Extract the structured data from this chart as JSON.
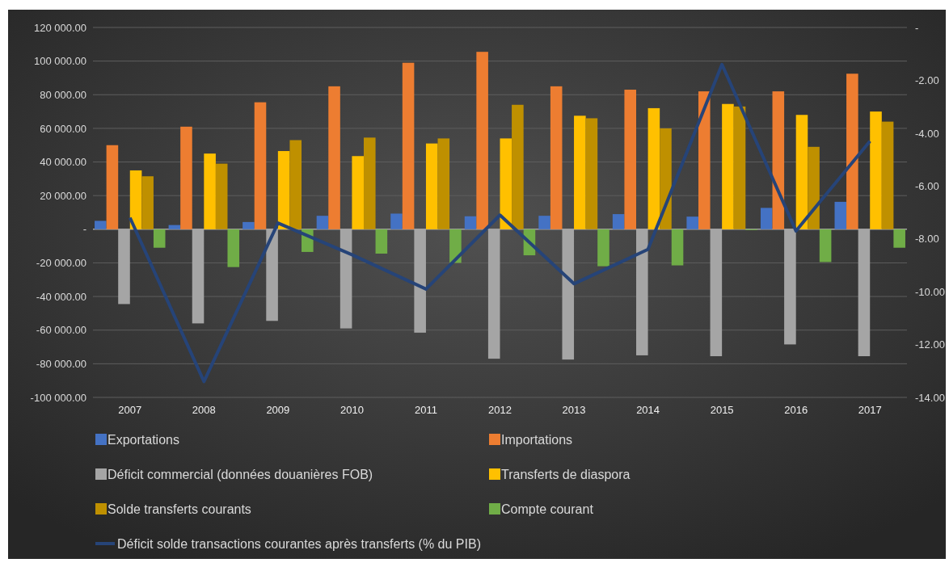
{
  "chart_data": {
    "type": "bar",
    "categories": [
      "2007",
      "2008",
      "2009",
      "2010",
      "2011",
      "2012",
      "2013",
      "2014",
      "2015",
      "2016",
      "2017"
    ],
    "series": [
      {
        "name": "Exportations",
        "color": "#4472c4",
        "values": [
          5000,
          2500,
          4300,
          8000,
          9300,
          7700,
          8000,
          9000,
          7500,
          12700,
          16300
        ]
      },
      {
        "name": "Importations",
        "color": "#ed7d31",
        "values": [
          50000,
          61000,
          75500,
          85000,
          99000,
          105500,
          85000,
          83000,
          82000,
          82000,
          92500
        ]
      },
      {
        "name": "Déficit commercial (données douanières FOB)",
        "color": "#a5a5a5",
        "values": [
          -44500,
          -56000,
          -54500,
          -59000,
          -61500,
          -77000,
          -77500,
          -75000,
          -75500,
          -68500,
          -75500
        ]
      },
      {
        "name": "Transferts de diaspora",
        "color": "#ffc000",
        "values": [
          35000,
          45000,
          46500,
          43500,
          51000,
          54000,
          67500,
          72000,
          74500,
          68000,
          70000
        ]
      },
      {
        "name": "Solde transferts courants",
        "color": "#bf9000",
        "values": [
          31500,
          39000,
          53000,
          54500,
          54000,
          74000,
          66000,
          60000,
          73000,
          49000,
          64000
        ]
      },
      {
        "name": "Compte courant",
        "color": "#70ad47",
        "values": [
          -11000,
          -22500,
          -13500,
          -14500,
          -20000,
          -15500,
          -22000,
          -21500,
          -500,
          -19500,
          -11000
        ]
      },
      {
        "name": "Déficit solde transactions courantes après transferts (% du PIB)",
        "type": "line",
        "axis": "y2",
        "color": "#264478",
        "values": [
          -7.2,
          -13.4,
          -7.4,
          -8.6,
          -9.9,
          -7.1,
          -9.7,
          -8.4,
          -1.4,
          -7.7,
          -4.3
        ]
      }
    ],
    "ylim": [
      -100000,
      120000
    ],
    "yticks": [
      {
        "value": -100000,
        "label": "-100 000.00"
      },
      {
        "value": -80000,
        "label": "-80 000.00"
      },
      {
        "value": -60000,
        "label": "-60 000.00"
      },
      {
        "value": -40000,
        "label": "-40 000.00"
      },
      {
        "value": -20000,
        "label": "-20 000.00"
      },
      {
        "value": 0,
        "label": "-"
      },
      {
        "value": 20000,
        "label": "20 000.00"
      },
      {
        "value": 40000,
        "label": "40 000.00"
      },
      {
        "value": 60000,
        "label": "60 000.00"
      },
      {
        "value": 80000,
        "label": "80 000.00"
      },
      {
        "value": 100000,
        "label": "100 000.00"
      },
      {
        "value": 120000,
        "label": "120 000.00"
      }
    ],
    "y2lim": [
      -14,
      0
    ],
    "y2ticks": [
      {
        "value": -14,
        "label": "-14.00"
      },
      {
        "value": -12,
        "label": "-12.00"
      },
      {
        "value": -10,
        "label": "-10.00"
      },
      {
        "value": -8,
        "label": "-8.00"
      },
      {
        "value": -6,
        "label": "-6.00"
      },
      {
        "value": -4,
        "label": "-4.00"
      },
      {
        "value": -2,
        "label": "-2.00"
      },
      {
        "value": 0,
        "label": "-"
      }
    ],
    "grid": "y",
    "legend": "bottom",
    "marker": "none",
    "line_style": "solid"
  }
}
